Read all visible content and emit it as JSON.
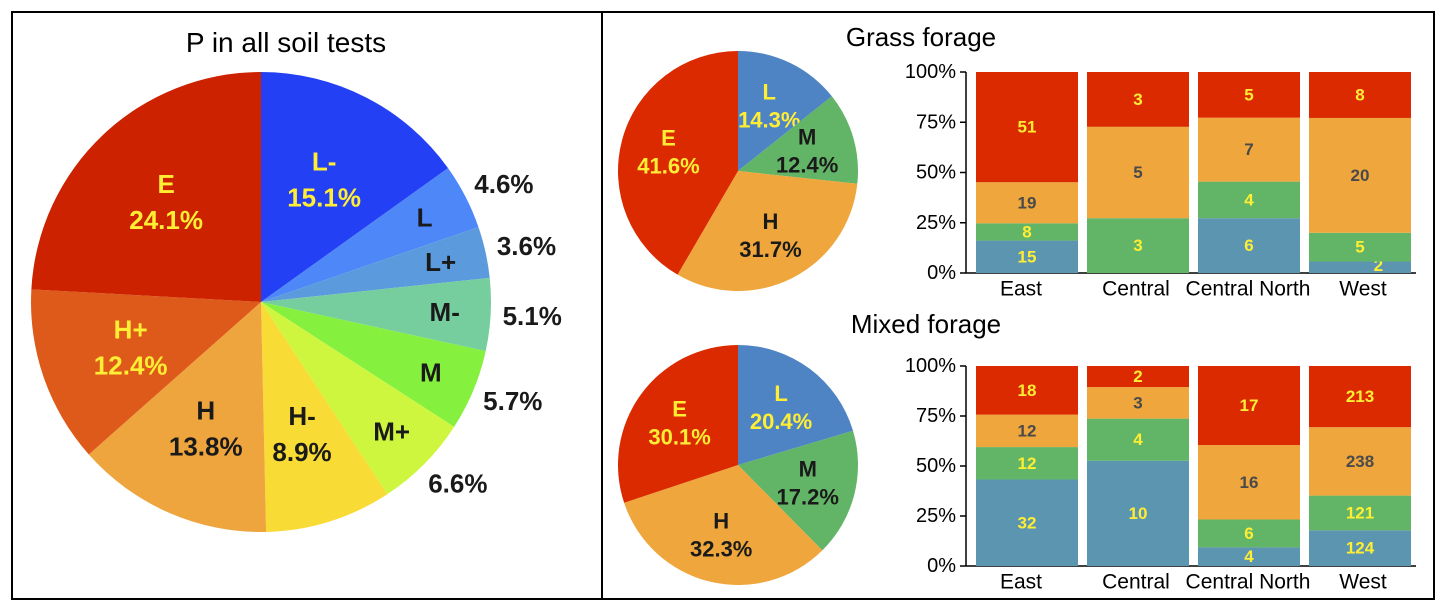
{
  "colors": {
    "L-": "#2340F5",
    "L": "#4D87F8",
    "L+": "#5B9BDD",
    "M-": "#76CE9F",
    "M": "#86F03F",
    "M+": "#CFF63F",
    "H-": "#F8DB34",
    "H": "#EEA53E",
    "H+": "#DD5A1B",
    "E": "#CC2200",
    "grp_L": "#4E84C4",
    "grp_M": "#62B466",
    "grp_H": "#EFA63C",
    "grp_E": "#DB2900",
    "bar_L": "#5C95B0",
    "bar_M": "#62B466",
    "bar_H": "#EFA63C",
    "bar_E": "#DB2900",
    "label_yellow": "#FFEE33",
    "label_dark": "#1a1a1a",
    "label_gray": "#4a4a4a"
  },
  "chart_data": [
    {
      "type": "pie",
      "title": "P in all soil tests",
      "slices": [
        {
          "label": "L-",
          "value": 15.1,
          "pct": "15.1%",
          "color_key": "L-",
          "inside": true
        },
        {
          "label": "L",
          "value": 4.6,
          "pct": "4.6%",
          "color_key": "L",
          "inside": false
        },
        {
          "label": "L+",
          "value": 3.6,
          "pct": "3.6%",
          "color_key": "L+",
          "inside": false
        },
        {
          "label": "M-",
          "value": 5.1,
          "pct": "5.1%",
          "color_key": "M-",
          "inside": false
        },
        {
          "label": "M",
          "value": 5.7,
          "pct": "5.7%",
          "color_key": "M",
          "inside": false
        },
        {
          "label": "M+",
          "value": 6.6,
          "pct": "6.6%",
          "color_key": "M+",
          "inside": false
        },
        {
          "label": "H-",
          "value": 8.9,
          "pct": "8.9%",
          "color_key": "H-",
          "inside": true
        },
        {
          "label": "H",
          "value": 13.8,
          "pct": "13.8%",
          "color_key": "H",
          "inside": true
        },
        {
          "label": "H+",
          "value": 12.4,
          "pct": "12.4%",
          "color_key": "H+",
          "inside": true
        },
        {
          "label": "E",
          "value": 24.1,
          "pct": "24.1%",
          "color_key": "E",
          "inside": true
        }
      ]
    },
    {
      "type": "pie",
      "title": "Grass forage",
      "slices": [
        {
          "label": "L",
          "value": 14.3,
          "pct": "14.3%",
          "color_key": "grp_L"
        },
        {
          "label": "M",
          "value": 12.4,
          "pct": "12.4%",
          "color_key": "grp_M"
        },
        {
          "label": "H",
          "value": 31.7,
          "pct": "31.7%",
          "color_key": "grp_H"
        },
        {
          "label": "E",
          "value": 41.6,
          "pct": "41.6%",
          "color_key": "grp_E"
        }
      ]
    },
    {
      "type": "bar",
      "stacked": true,
      "normalized": true,
      "categories": [
        "East",
        "Central",
        "Central North",
        "West"
      ],
      "y_ticks": [
        "0%",
        "25%",
        "50%",
        "75%",
        "100%"
      ],
      "ylim": [
        0,
        100
      ],
      "series": [
        {
          "name": "L",
          "color_key": "bar_L",
          "values": [
            15,
            0,
            6,
            2
          ]
        },
        {
          "name": "M",
          "color_key": "bar_M",
          "values": [
            8,
            3,
            4,
            5
          ]
        },
        {
          "name": "H",
          "color_key": "bar_H",
          "values": [
            19,
            5,
            7,
            20
          ]
        },
        {
          "name": "E",
          "color_key": "bar_E",
          "values": [
            51,
            3,
            5,
            8
          ]
        }
      ]
    },
    {
      "type": "pie",
      "title": "Mixed forage",
      "slices": [
        {
          "label": "L",
          "value": 20.4,
          "pct": "20.4%",
          "color_key": "grp_L"
        },
        {
          "label": "M",
          "value": 17.2,
          "pct": "17.2%",
          "color_key": "grp_M"
        },
        {
          "label": "H",
          "value": 32.3,
          "pct": "32.3%",
          "color_key": "grp_H"
        },
        {
          "label": "E",
          "value": 30.1,
          "pct": "30.1%",
          "color_key": "grp_E"
        }
      ]
    },
    {
      "type": "bar",
      "stacked": true,
      "normalized": true,
      "categories": [
        "East",
        "Central",
        "Central North",
        "West"
      ],
      "y_ticks": [
        "0%",
        "25%",
        "50%",
        "75%",
        "100%"
      ],
      "ylim": [
        0,
        100
      ],
      "series": [
        {
          "name": "L",
          "color_key": "bar_L",
          "values": [
            32,
            10,
            4,
            124
          ]
        },
        {
          "name": "M",
          "color_key": "bar_M",
          "values": [
            12,
            4,
            6,
            121
          ]
        },
        {
          "name": "H",
          "color_key": "bar_H",
          "values": [
            12,
            3,
            16,
            238
          ]
        },
        {
          "name": "E",
          "color_key": "bar_E",
          "values": [
            18,
            2,
            17,
            213
          ]
        }
      ]
    }
  ]
}
